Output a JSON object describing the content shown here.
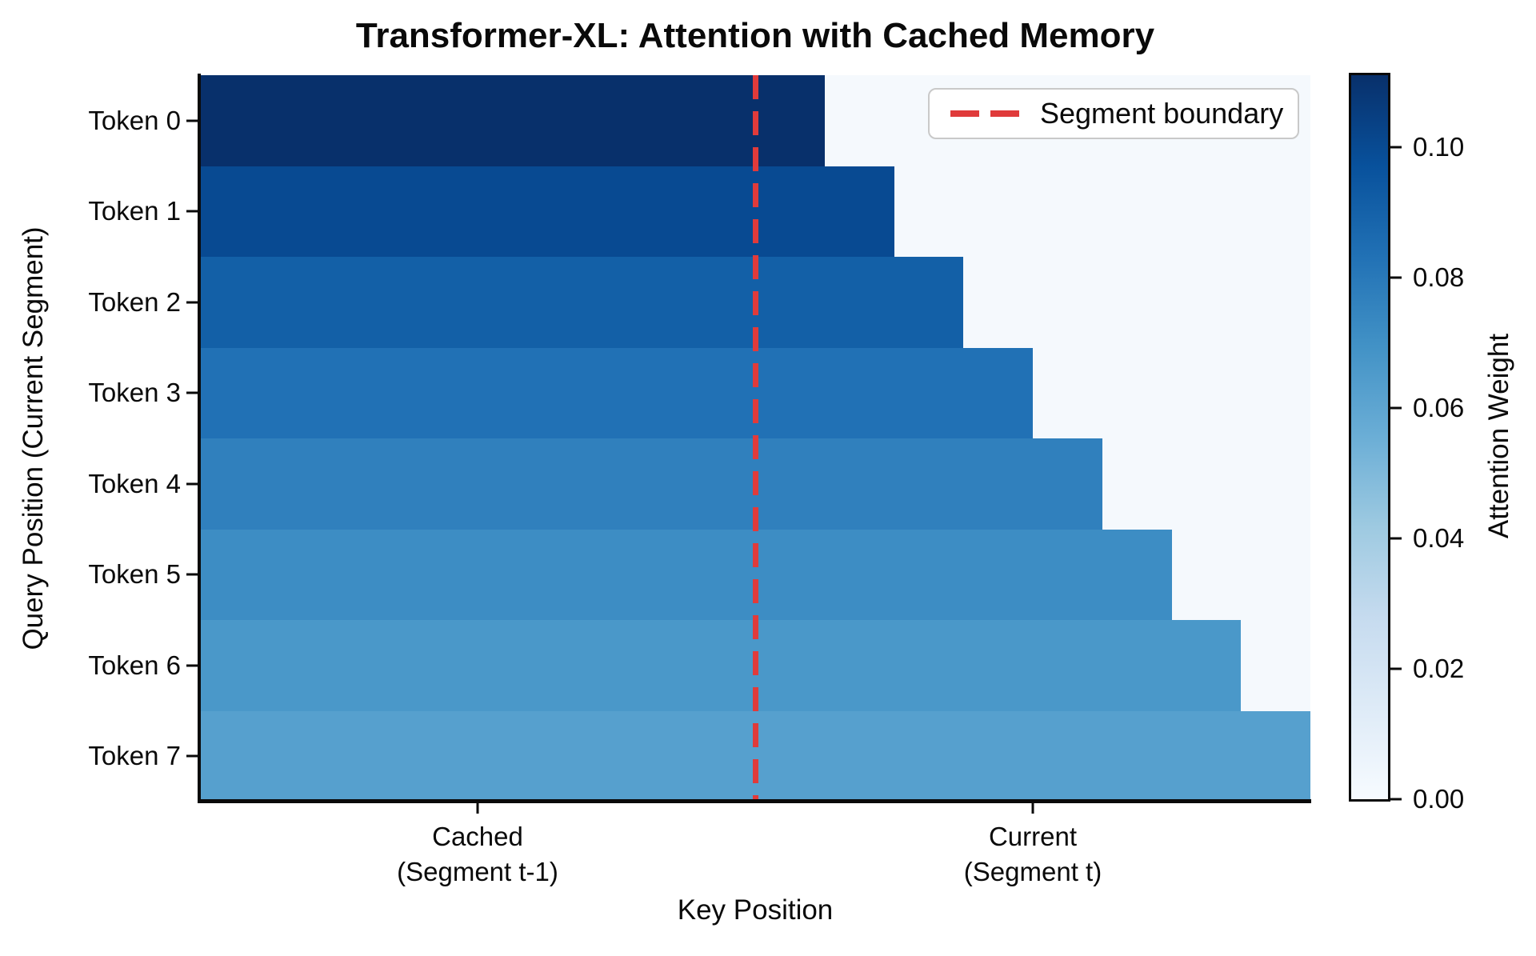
{
  "title": "Transformer-XL: Attention with Cached Memory",
  "axes": {
    "x_label": "Key Position",
    "y_label": "Query Position (Current Segment)",
    "x_ticks": [
      {
        "line1": "Cached",
        "line2": "(Segment t-1)",
        "position_pct": 25
      },
      {
        "line1": "Current",
        "line2": "(Segment t)",
        "position_pct": 75
      }
    ],
    "y_ticks": [
      "Token 0",
      "Token 1",
      "Token 2",
      "Token 3",
      "Token 4",
      "Token 5",
      "Token 6",
      "Token 7"
    ]
  },
  "legend": {
    "label": "Segment boundary"
  },
  "colorbar": {
    "label": "Attention Weight",
    "vmin": 0.0,
    "vmax": 0.1111,
    "ticks": [
      {
        "value": 0.0,
        "label": "0.00"
      },
      {
        "value": 0.02,
        "label": "0.02"
      },
      {
        "value": 0.04,
        "label": "0.04"
      },
      {
        "value": 0.06,
        "label": "0.06"
      },
      {
        "value": 0.08,
        "label": "0.08"
      },
      {
        "value": 0.1,
        "label": "0.10"
      }
    ]
  },
  "colors": {
    "masked_bg": "#f5f9fd",
    "boundary_red": "#e03b3b",
    "row_colors": [
      "#08306b",
      "#084a92",
      "#1360a7",
      "#2171b5",
      "#3080bd",
      "#3d8dc4",
      "#4a98c9",
      "#56a0ce"
    ],
    "colormap_stops_bottom_to_top": [
      "#f7fbff",
      "#deebf7",
      "#c6dbef",
      "#9ecae1",
      "#6baed6",
      "#4292c6",
      "#2171b5",
      "#08519c",
      "#08306b"
    ]
  },
  "chart_data": {
    "type": "heatmap",
    "title": "Transformer-XL: Attention with Cached Memory",
    "xlabel": "Key Position",
    "ylabel": "Query Position (Current Segment)",
    "row_labels": [
      "Token 0",
      "Token 1",
      "Token 2",
      "Token 3",
      "Token 4",
      "Token 5",
      "Token 6",
      "Token 7"
    ],
    "x_group_labels": [
      "Cached (Segment t-1)",
      "Current (Segment t)"
    ],
    "n_key_positions": 16,
    "n_cached": 8,
    "n_current": 8,
    "segment_boundary_after_col": 8,
    "row_visible_cols": [
      9,
      10,
      11,
      12,
      13,
      14,
      15,
      16
    ],
    "row_attention_weight": [
      0.1111,
      0.1,
      0.0909,
      0.0833,
      0.0769,
      0.0714,
      0.0667,
      0.0625
    ],
    "masked_value": 0.0,
    "colormap": "Blues",
    "vmin": 0.0,
    "vmax": 0.1111,
    "legend_entries": [
      "Segment boundary"
    ],
    "legend_position": "upper right",
    "grid": false
  }
}
